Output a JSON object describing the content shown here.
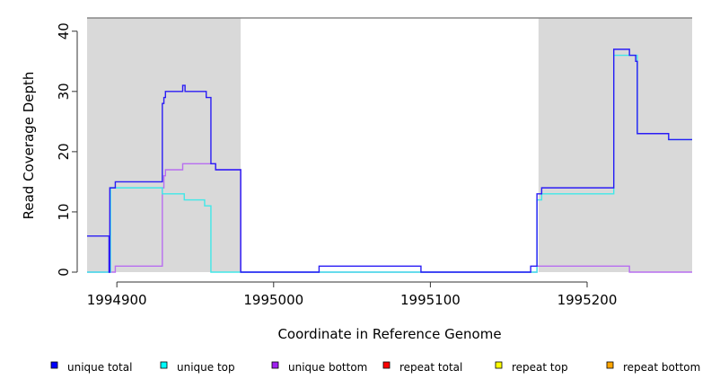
{
  "chart_data": {
    "type": "line",
    "title": "",
    "xlabel": "Coordinate in Reference Genome",
    "ylabel": "Read Coverage Depth",
    "xlim": [
      1994881,
      1995267
    ],
    "ylim": [
      0,
      42.2
    ],
    "xticks": [
      1994900,
      1995000,
      1995100,
      1995200
    ],
    "xtick_labels": [
      "1994900",
      "1995000",
      "1995100",
      "1995200"
    ],
    "yticks": [
      0,
      10,
      20,
      30,
      40
    ],
    "ytick_labels": [
      "0",
      "10",
      "20",
      "30",
      "40"
    ],
    "shaded_regions": [
      [
        1994881,
        1994979
      ],
      [
        1995169,
        1995267
      ]
    ],
    "shade_color": "#d9d9d9",
    "series": [
      {
        "name": "unique bottom",
        "color": "#b86ef0",
        "steps": [
          [
            1994881,
            0
          ],
          [
            1994899,
            1
          ],
          [
            1994929,
            14
          ],
          [
            1994930,
            16
          ],
          [
            1994931,
            17
          ],
          [
            1994942,
            18
          ],
          [
            1994963,
            17
          ],
          [
            1994979,
            0
          ],
          [
            1995168,
            1
          ],
          [
            1995227,
            0
          ],
          [
            1995267,
            0
          ]
        ]
      },
      {
        "name": "unique top",
        "color": "#40e8e8",
        "steps": [
          [
            1994881,
            0
          ],
          [
            1994896,
            14
          ],
          [
            1994929,
            13
          ],
          [
            1994943,
            12
          ],
          [
            1994956,
            11
          ],
          [
            1994960,
            0
          ],
          [
            1995168,
            12
          ],
          [
            1995171,
            13
          ],
          [
            1995217,
            36
          ],
          [
            1995232,
            23
          ],
          [
            1995252,
            22
          ],
          [
            1995267,
            22
          ]
        ]
      },
      {
        "name": "unique total",
        "color": "#2a1cf5",
        "steps": [
          [
            1994881,
            6
          ],
          [
            1994895,
            0
          ],
          [
            1994895.5,
            14
          ],
          [
            1994899,
            15
          ],
          [
            1994929,
            28
          ],
          [
            1994930,
            29
          ],
          [
            1994931,
            30
          ],
          [
            1994942,
            31
          ],
          [
            1994943.5,
            30
          ],
          [
            1994957,
            29
          ],
          [
            1994960,
            18
          ],
          [
            1994963,
            17
          ],
          [
            1994979,
            0
          ],
          [
            1995029,
            1
          ],
          [
            1995094,
            0
          ],
          [
            1995164,
            1
          ],
          [
            1995168,
            13
          ],
          [
            1995171,
            14
          ],
          [
            1995217,
            37
          ],
          [
            1995227,
            36
          ],
          [
            1995231,
            35
          ],
          [
            1995232,
            23
          ],
          [
            1995252,
            22
          ],
          [
            1995267,
            22
          ]
        ]
      }
    ],
    "legend": {
      "placement": "bottom",
      "items": [
        {
          "label": "unique total",
          "color": "#0000ff"
        },
        {
          "label": "unique top",
          "color": "#00ffff"
        },
        {
          "label": "unique bottom",
          "color": "#a020f0"
        },
        {
          "label": "repeat total",
          "color": "#ff0000"
        },
        {
          "label": "repeat top",
          "color": "#ffff00"
        },
        {
          "label": "repeat bottom",
          "color": "#ffa500"
        }
      ]
    }
  }
}
